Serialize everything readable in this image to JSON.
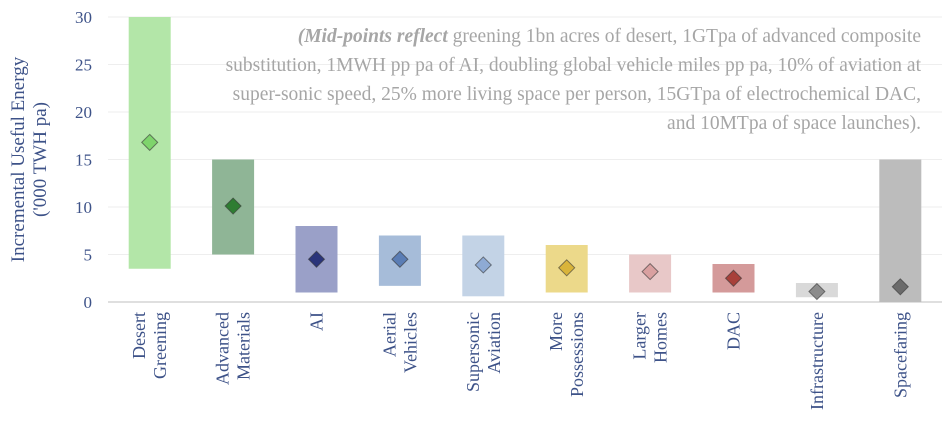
{
  "chart_data": {
    "type": "range",
    "y_label": [
      "Incremental Useful Energy",
      "('000 TWH pa)"
    ],
    "annotation_bold": "(Mid-points reflect",
    "annotation": "greening 1bn acres of desert, 1GTpa of advanced composite substitution, 1MWH pp pa of AI, doubling global vehicle miles pp pa, 10% of aviation at super-sonic speed, 25% more living space per person, 15GTpa of electrochemical DAC, and 10MTpa of space launches).",
    "categories": [
      [
        "Desert",
        "Greening"
      ],
      [
        "Advanced",
        "Materials"
      ],
      [
        "AI"
      ],
      [
        "Aerial",
        "Vehicles"
      ],
      [
        "Supersonic",
        "Aviation"
      ],
      [
        "More",
        "Possessions"
      ],
      [
        "Larger",
        "Homes"
      ],
      [
        "DAC"
      ],
      [
        "Infrastructure"
      ],
      [
        "Spacefaring"
      ]
    ],
    "low": [
      3.5,
      5,
      1,
      1.7,
      0.6,
      1,
      1,
      1,
      0.5,
      0
    ],
    "high": [
      30,
      15,
      8,
      7,
      7,
      6,
      5,
      4,
      2,
      15
    ],
    "mid": [
      16.8,
      10.1,
      4.5,
      4.5,
      3.9,
      3.6,
      3.2,
      2.5,
      1.1,
      1.6
    ],
    "bar_colors": [
      "#b3e6a8",
      "#8fb596",
      "#9aa0c8",
      "#a6bcd9",
      "#c3d3e6",
      "#ecd98a",
      "#e8c8c8",
      "#d49a9a",
      "#d9d9d9",
      "#bcbcbc"
    ],
    "marker_colors": [
      "#7ed46c",
      "#2e7d32",
      "#2a347a",
      "#5a7db5",
      "#8eaad4",
      "#d9b43a",
      "#d9a0a0",
      "#a8403a",
      "#8c8c8c",
      "#6b6b6b"
    ],
    "ylim": [
      0,
      30
    ],
    "yticks": [
      0,
      5,
      10,
      15,
      20,
      25,
      30
    ],
    "grid": true
  }
}
